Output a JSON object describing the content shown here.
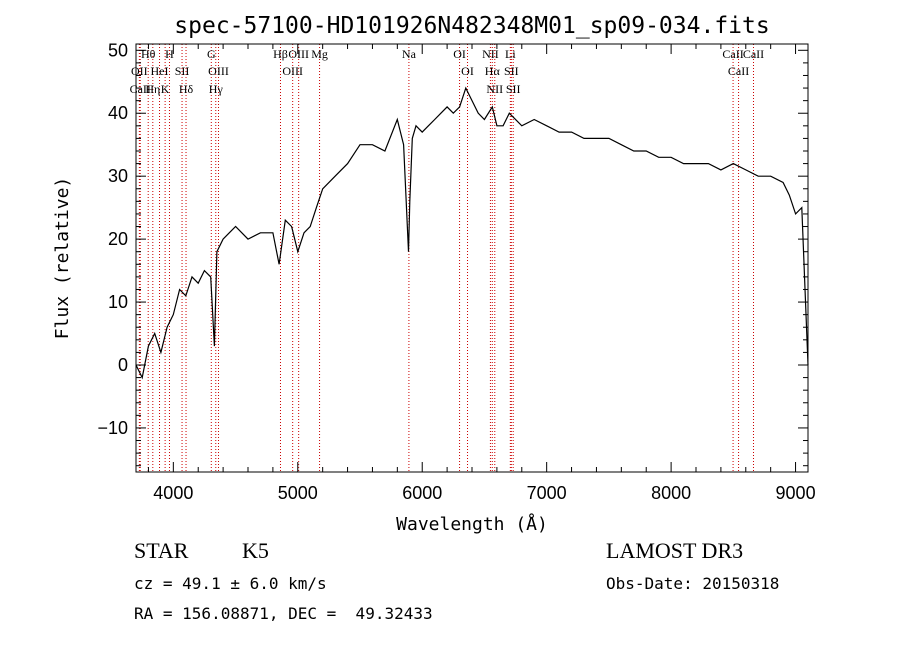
{
  "chart_data": {
    "type": "line",
    "title": "spec-57100-HD101926N482348M01_sp09-034.fits",
    "xlabel": "Wavelength (Å)",
    "ylabel": "Flux (relative)",
    "xlim": [
      3700,
      9100
    ],
    "ylim": [
      -17,
      51
    ],
    "x_ticks": [
      4000,
      5000,
      6000,
      7000,
      8000,
      9000
    ],
    "y_ticks": [
      -10,
      0,
      10,
      20,
      30,
      40,
      50
    ],
    "tick_labels_x": [
      "4000",
      "5000",
      "6000",
      "7000",
      "8000",
      "9000"
    ],
    "tick_labels_y": [
      "−10",
      "0",
      "10",
      "20",
      "30",
      "40",
      "50"
    ],
    "grid": false,
    "line_color": "#000000",
    "marker_color": "#cc0000",
    "series": [
      {
        "x": [
          3700,
          3750,
          3800,
          3850,
          3900,
          3950,
          4000,
          4050,
          4100,
          4150,
          4200,
          4250,
          4300,
          4330,
          4350,
          4400,
          4450,
          4500,
          4600,
          4700,
          4800,
          4850,
          4900,
          4950,
          5000,
          5050,
          5100,
          5150,
          5200,
          5300,
          5400,
          5500,
          5600,
          5700,
          5800,
          5850,
          5890,
          5900,
          5920,
          5950,
          6000,
          6050,
          6100,
          6150,
          6200,
          6250,
          6300,
          6350,
          6400,
          6450,
          6500,
          6563,
          6600,
          6650,
          6700,
          6800,
          6900,
          7000,
          7100,
          7200,
          7300,
          7400,
          7500,
          7600,
          7700,
          7800,
          7900,
          8000,
          8100,
          8200,
          8300,
          8400,
          8500,
          8600,
          8700,
          8800,
          8900,
          8950,
          9000,
          9050,
          9100
        ],
        "y": [
          0,
          -2,
          3,
          5,
          2,
          6,
          8,
          12,
          11,
          14,
          13,
          15,
          14,
          3,
          18,
          20,
          21,
          22,
          20,
          21,
          21,
          16,
          23,
          22,
          18,
          21,
          22,
          25,
          28,
          30,
          32,
          35,
          35,
          34,
          39,
          35,
          18,
          26,
          36,
          38,
          37,
          38,
          39,
          40,
          41,
          40,
          41,
          44,
          42,
          40,
          39,
          41,
          38,
          38,
          40,
          38,
          39,
          38,
          37,
          37,
          36,
          36,
          36,
          35,
          34,
          34,
          33,
          33,
          32,
          32,
          32,
          31,
          32,
          31,
          30,
          30,
          29,
          27,
          24,
          25,
          0
        ]
      }
    ],
    "spectral_lines": [
      {
        "label": "Hθ",
        "x": 3798
      },
      {
        "label": "OII",
        "x": 3727
      },
      {
        "label": "CaII",
        "x": 3734
      },
      {
        "label": "Hη",
        "x": 3835
      },
      {
        "label": "HeI",
        "x": 3889
      },
      {
        "label": "K",
        "x": 3934
      },
      {
        "label": "H",
        "x": 3969
      },
      {
        "label": "SII",
        "x": 4070
      },
      {
        "label": "Hδ",
        "x": 4102
      },
      {
        "label": "G",
        "x": 4305
      },
      {
        "label": "OIII",
        "x": 4363
      },
      {
        "label": "Hγ",
        "x": 4341
      },
      {
        "label": "Hβ",
        "x": 4861
      },
      {
        "label": "OIII",
        "x": 4959
      },
      {
        "label": "OIII",
        "x": 5007
      },
      {
        "label": "Mg",
        "x": 5175
      },
      {
        "label": "Na",
        "x": 5893
      },
      {
        "label": "OI",
        "x": 6300
      },
      {
        "label": "OI",
        "x": 6364
      },
      {
        "label": "NII",
        "x": 6548
      },
      {
        "label": "Hα",
        "x": 6563
      },
      {
        "label": "NII",
        "x": 6583
      },
      {
        "label": "Li",
        "x": 6708
      },
      {
        "label": "SII",
        "x": 6716
      },
      {
        "label": "SII",
        "x": 6731
      },
      {
        "label": "CaII",
        "x": 8498
      },
      {
        "label": "CaII",
        "x": 8542
      },
      {
        "label": "CaII",
        "x": 8662
      }
    ]
  },
  "info": {
    "class": "STAR",
    "subclass": "K5",
    "survey": "LAMOST DR3",
    "cz": "cz = 49.1 ± 6.0 km/s",
    "obs_date": "Obs-Date: 20150318",
    "radec": "RA = 156.08871, DEC =  49.32433"
  }
}
